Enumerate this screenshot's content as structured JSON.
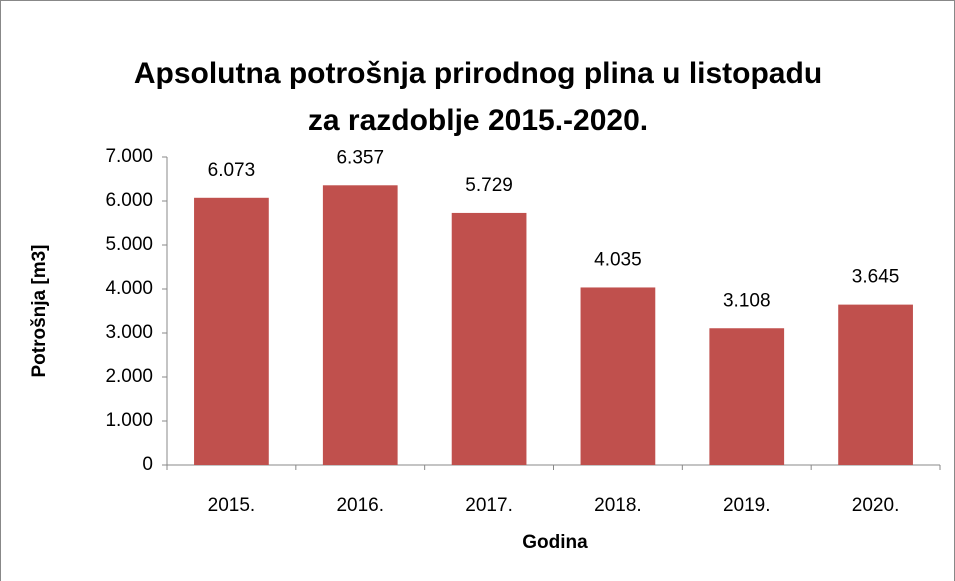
{
  "chart_data": {
    "type": "bar",
    "title": [
      "Apsolutna potrošnja prirodnog plina u listopadu",
      "za razdoblje 2015.-2020."
    ],
    "x_label": "Godina",
    "y_label": "Potrošnja [m3]",
    "categories": [
      "2015.",
      "2016.",
      "2017.",
      "2018.",
      "2019.",
      "2020."
    ],
    "values": [
      6073,
      6357,
      5729,
      4035,
      3108,
      3645
    ],
    "value_labels": [
      "6.073",
      "6.357",
      "5.729",
      "4.035",
      "3.108",
      "3.645"
    ],
    "color": "#c0504d",
    "ylim": [
      0,
      7000
    ],
    "yticks": [
      0,
      {
        "value": 1000,
        "label": "1.000"
      },
      {
        "value": 2000,
        "label": "2.000"
      },
      {
        "value": 3000,
        "label": "3.000"
      },
      {
        "value": 4000,
        "label": "4.000"
      },
      {
        "value": 5000,
        "label": "5.000"
      },
      {
        "value": 6000,
        "label": "6.000"
      },
      {
        "value": 7000,
        "label": "7.000"
      }
    ],
    "grid": false
  }
}
